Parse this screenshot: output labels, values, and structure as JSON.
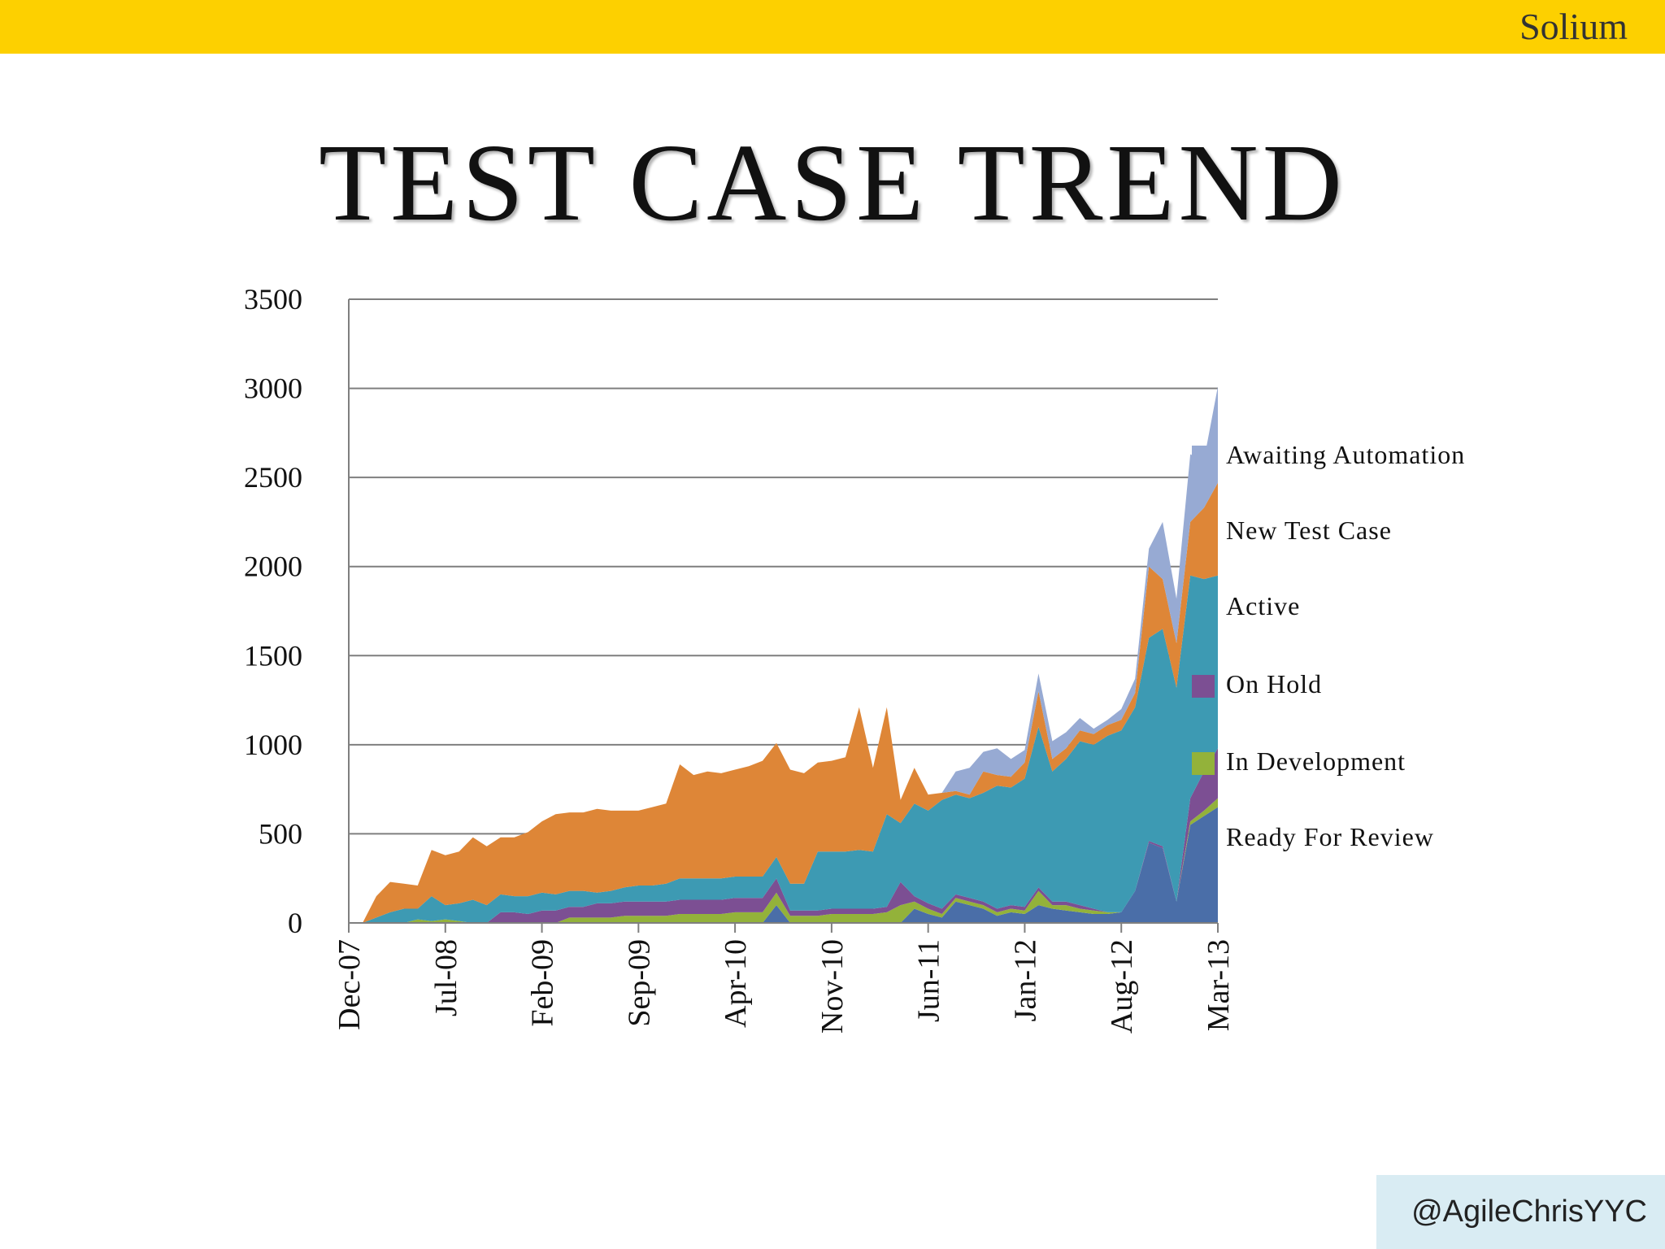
{
  "header": {
    "brand": "Solium",
    "bar_color": "#fdd000"
  },
  "footer": {
    "handle": "@AgileChrisYYC"
  },
  "chart_data": {
    "type": "area",
    "title": "TEST CASE TREND",
    "xlabel": "",
    "ylabel": "",
    "stacked": true,
    "ylim": [
      0,
      3500
    ],
    "yticks": [
      0,
      500,
      1000,
      1500,
      2000,
      2500,
      3000,
      3500
    ],
    "xlim": [
      "2007-12",
      "2013-03"
    ],
    "xtick_labels": [
      "Dec-07",
      "Jul-08",
      "Feb-09",
      "Sep-09",
      "Apr-10",
      "Nov-10",
      "Jun-11",
      "Jan-12",
      "Aug-12",
      "Mar-13"
    ],
    "grid": "horizontal",
    "legend_position": "right",
    "x": [
      "2007-12",
      "2008-01",
      "2008-02",
      "2008-03",
      "2008-04",
      "2008-05",
      "2008-06",
      "2008-07",
      "2008-08",
      "2008-09",
      "2008-10",
      "2008-11",
      "2008-12",
      "2009-01",
      "2009-02",
      "2009-03",
      "2009-04",
      "2009-05",
      "2009-06",
      "2009-07",
      "2009-08",
      "2009-09",
      "2009-10",
      "2009-11",
      "2009-12",
      "2010-01",
      "2010-02",
      "2010-03",
      "2010-04",
      "2010-05",
      "2010-06",
      "2010-07",
      "2010-08",
      "2010-09",
      "2010-10",
      "2010-11",
      "2010-12",
      "2011-01",
      "2011-02",
      "2011-03",
      "2011-04",
      "2011-05",
      "2011-06",
      "2011-07",
      "2011-08",
      "2011-09",
      "2011-10",
      "2011-11",
      "2011-12",
      "2012-01",
      "2012-02",
      "2012-03",
      "2012-04",
      "2012-05",
      "2012-06",
      "2012-07",
      "2012-08",
      "2012-09",
      "2012-10",
      "2012-11",
      "2012-12",
      "2013-01",
      "2013-02",
      "2013-03"
    ],
    "series": [
      {
        "name": "Ready For Review",
        "color": "#4a6ea8",
        "values": [
          0,
          0,
          0,
          0,
          0,
          0,
          0,
          0,
          0,
          0,
          0,
          0,
          0,
          0,
          0,
          0,
          0,
          0,
          0,
          0,
          0,
          0,
          0,
          0,
          0,
          0,
          0,
          0,
          0,
          0,
          0,
          100,
          0,
          0,
          0,
          0,
          0,
          0,
          0,
          0,
          0,
          80,
          50,
          30,
          120,
          100,
          80,
          40,
          60,
          50,
          100,
          80,
          70,
          60,
          50,
          50,
          60,
          180,
          450,
          420,
          120,
          550,
          600,
          650
        ]
      },
      {
        "name": "In Development",
        "color": "#93b23a",
        "values": [
          0,
          0,
          0,
          0,
          0,
          20,
          10,
          20,
          10,
          0,
          0,
          0,
          0,
          0,
          0,
          0,
          30,
          30,
          30,
          30,
          40,
          40,
          40,
          40,
          50,
          50,
          50,
          50,
          60,
          60,
          60,
          70,
          40,
          40,
          40,
          50,
          50,
          50,
          50,
          60,
          100,
          40,
          30,
          20,
          20,
          20,
          20,
          20,
          20,
          20,
          80,
          20,
          30,
          20,
          20,
          10,
          0,
          0,
          0,
          0,
          0,
          20,
          30,
          50
        ]
      },
      {
        "name": "On Hold",
        "color": "#7c4f93",
        "values": [
          0,
          0,
          0,
          0,
          0,
          0,
          0,
          0,
          0,
          0,
          0,
          60,
          60,
          50,
          70,
          70,
          60,
          60,
          80,
          80,
          80,
          80,
          80,
          80,
          80,
          80,
          80,
          80,
          80,
          80,
          80,
          80,
          30,
          30,
          30,
          30,
          30,
          30,
          30,
          30,
          130,
          30,
          30,
          30,
          20,
          20,
          20,
          20,
          20,
          20,
          20,
          20,
          20,
          20,
          10,
          0,
          0,
          0,
          10,
          10,
          0,
          130,
          220,
          280
        ]
      },
      {
        "name": "Active",
        "color": "#3d9ab3",
        "values": [
          0,
          0,
          30,
          60,
          80,
          60,
          140,
          80,
          100,
          130,
          100,
          100,
          90,
          100,
          100,
          90,
          90,
          90,
          60,
          70,
          80,
          90,
          90,
          100,
          120,
          120,
          120,
          120,
          120,
          120,
          120,
          120,
          150,
          150,
          330,
          320,
          320,
          330,
          320,
          520,
          330,
          520,
          520,
          610,
          560,
          560,
          610,
          690,
          660,
          720,
          900,
          730,
          800,
          920,
          920,
          990,
          1020,
          1030,
          1140,
          1220,
          1200,
          1250,
          1080,
          970
        ]
      },
      {
        "name": "New Test Case",
        "color": "#de8637",
        "values": [
          0,
          0,
          120,
          170,
          140,
          130,
          260,
          280,
          290,
          350,
          330,
          320,
          330,
          360,
          400,
          450,
          440,
          440,
          470,
          450,
          430,
          420,
          440,
          450,
          640,
          580,
          600,
          590,
          600,
          620,
          650,
          640,
          640,
          620,
          500,
          510,
          530,
          800,
          470,
          600,
          130,
          200,
          90,
          40,
          20,
          20,
          120,
          60,
          60,
          90,
          200,
          70,
          60,
          60,
          60,
          60,
          60,
          80,
          400,
          280,
          250,
          300,
          400,
          520
        ]
      },
      {
        "name": "Awaiting Automation",
        "color": "#97aad3",
        "values": [
          0,
          0,
          0,
          0,
          0,
          0,
          0,
          0,
          0,
          0,
          0,
          0,
          0,
          0,
          0,
          0,
          0,
          0,
          0,
          0,
          0,
          0,
          0,
          0,
          0,
          0,
          0,
          0,
          0,
          0,
          0,
          0,
          0,
          0,
          0,
          0,
          0,
          0,
          0,
          0,
          0,
          0,
          0,
          0,
          110,
          150,
          110,
          150,
          100,
          70,
          100,
          100,
          90,
          70,
          30,
          30,
          60,
          80,
          100,
          320,
          250,
          380,
          270,
          540
        ]
      }
    ]
  }
}
